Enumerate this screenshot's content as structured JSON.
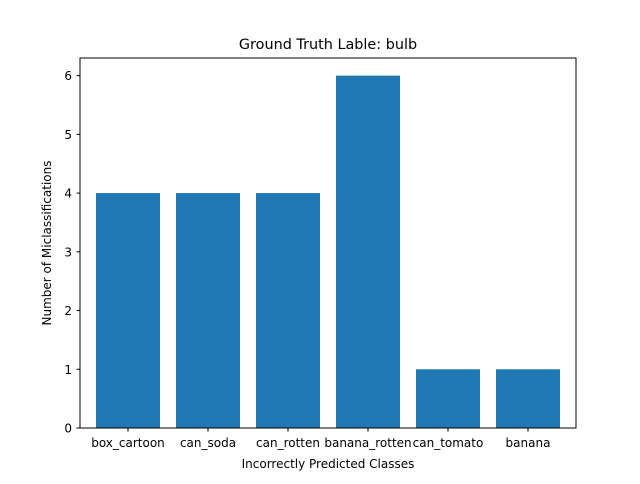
{
  "chart_data": {
    "type": "bar",
    "title": "Ground Truth Lable: bulb",
    "xlabel": "Incorrectly Predicted Classes",
    "ylabel": "Number of Miclassifications",
    "categories": [
      "box_cartoon",
      "can_soda",
      "can_rotten",
      "banana_rotten",
      "can_tomato",
      "banana"
    ],
    "values": [
      4,
      4,
      4,
      6,
      1,
      1
    ],
    "ylim": [
      0,
      6.3
    ],
    "yticks": [
      0,
      1,
      2,
      3,
      4,
      5,
      6
    ],
    "bar_color": "#1f77b4",
    "grid": false,
    "legend": "none"
  }
}
